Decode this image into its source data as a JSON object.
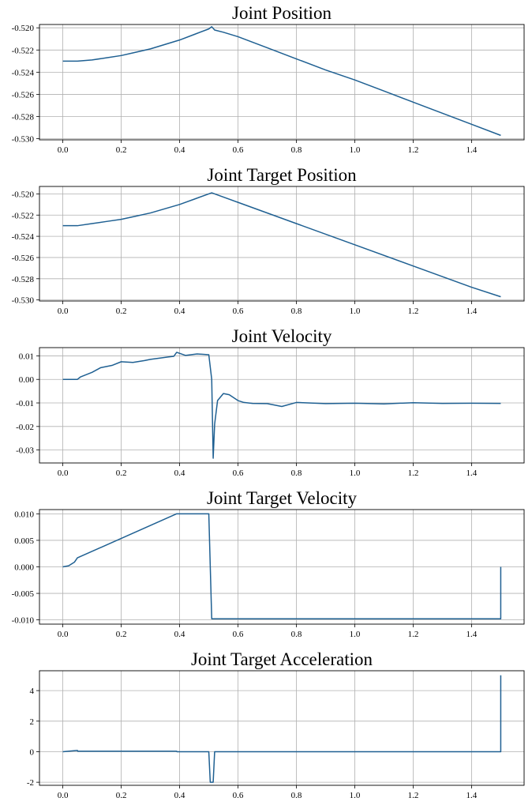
{
  "colors": {
    "line": "#1f6092",
    "grid": "#b0b0b0",
    "axes": "#000000"
  },
  "chart_data": [
    {
      "type": "line",
      "title": "Joint Position",
      "xlabel": "",
      "ylabel": "",
      "xlim": [
        -0.08,
        1.58
      ],
      "ylim": [
        -0.5301,
        -0.5197
      ],
      "xticks": [
        0.0,
        0.2,
        0.4,
        0.6,
        0.8,
        1.0,
        1.2,
        1.4
      ],
      "xtick_labels": [
        "0.0",
        "0.2",
        "0.4",
        "0.6",
        "0.8",
        "1.0",
        "1.2",
        "1.4"
      ],
      "yticks": [
        -0.52,
        -0.522,
        -0.524,
        -0.526,
        -0.528,
        -0.53
      ],
      "ytick_labels": [
        "-0.520",
        "-0.522",
        "-0.524",
        "-0.526",
        "-0.528",
        "-0.530"
      ],
      "grid": true,
      "series": [
        {
          "x": [
            0.0,
            0.05,
            0.1,
            0.15,
            0.2,
            0.25,
            0.3,
            0.35,
            0.4,
            0.45,
            0.5,
            0.51,
            0.52,
            0.55,
            0.6,
            0.7,
            0.8,
            0.9,
            1.0,
            1.1,
            1.2,
            1.3,
            1.4,
            1.5
          ],
          "y": [
            -0.523,
            -0.523,
            -0.5229,
            -0.5227,
            -0.5225,
            -0.5222,
            -0.5219,
            -0.5215,
            -0.5211,
            -0.5206,
            -0.5201,
            -0.5199,
            -0.5202,
            -0.5204,
            -0.5208,
            -0.5218,
            -0.5228,
            -0.5238,
            -0.5247,
            -0.5257,
            -0.5267,
            -0.5277,
            -0.5287,
            -0.5297
          ]
        }
      ]
    },
    {
      "type": "line",
      "title": "Joint Target Position",
      "xlabel": "",
      "ylabel": "",
      "xlim": [
        -0.08,
        1.58
      ],
      "ylim": [
        -0.5301,
        -0.5193
      ],
      "xticks": [
        0.0,
        0.2,
        0.4,
        0.6,
        0.8,
        1.0,
        1.2,
        1.4
      ],
      "xtick_labels": [
        "0.0",
        "0.2",
        "0.4",
        "0.6",
        "0.8",
        "1.0",
        "1.2",
        "1.4"
      ],
      "yticks": [
        -0.52,
        -0.522,
        -0.524,
        -0.526,
        -0.528,
        -0.53
      ],
      "ytick_labels": [
        "-0.520",
        "-0.522",
        "-0.524",
        "-0.526",
        "-0.528",
        "-0.530"
      ],
      "grid": true,
      "series": [
        {
          "x": [
            0.0,
            0.05,
            0.1,
            0.15,
            0.2,
            0.25,
            0.3,
            0.35,
            0.4,
            0.45,
            0.51,
            0.6,
            0.8,
            1.0,
            1.2,
            1.4,
            1.5
          ],
          "y": [
            -0.523,
            -0.523,
            -0.5228,
            -0.5226,
            -0.5224,
            -0.5221,
            -0.5218,
            -0.5214,
            -0.521,
            -0.5205,
            -0.5199,
            -0.5208,
            -0.5228,
            -0.5248,
            -0.5268,
            -0.5288,
            -0.5297
          ]
        }
      ]
    },
    {
      "type": "line",
      "title": "Joint Velocity",
      "xlabel": "",
      "ylabel": "",
      "xlim": [
        -0.08,
        1.58
      ],
      "ylim": [
        -0.0355,
        0.0135
      ],
      "xticks": [
        0.0,
        0.2,
        0.4,
        0.6,
        0.8,
        1.0,
        1.2,
        1.4
      ],
      "xtick_labels": [
        "0.0",
        "0.2",
        "0.4",
        "0.6",
        "0.8",
        "1.0",
        "1.2",
        "1.4"
      ],
      "yticks": [
        0.01,
        0.0,
        -0.01,
        -0.02,
        -0.03
      ],
      "ytick_labels": [
        "0.01",
        "0.00",
        "-0.01",
        "-0.02",
        "-0.03"
      ],
      "grid": true,
      "series": [
        {
          "x": [
            0.0,
            0.05,
            0.06,
            0.1,
            0.13,
            0.17,
            0.2,
            0.24,
            0.28,
            0.3,
            0.33,
            0.36,
            0.38,
            0.39,
            0.42,
            0.46,
            0.5,
            0.51,
            0.515,
            0.52,
            0.53,
            0.55,
            0.57,
            0.6,
            0.62,
            0.65,
            0.7,
            0.75,
            0.8,
            0.9,
            1.0,
            1.1,
            1.2,
            1.3,
            1.4,
            1.5
          ],
          "y": [
            0.0,
            0.0,
            0.001,
            0.003,
            0.005,
            0.006,
            0.0075,
            0.0072,
            0.008,
            0.0085,
            0.009,
            0.0095,
            0.0098,
            0.0115,
            0.0102,
            0.0108,
            0.0105,
            0.0,
            -0.0335,
            -0.019,
            -0.009,
            -0.006,
            -0.0065,
            -0.009,
            -0.0098,
            -0.0102,
            -0.0103,
            -0.0115,
            -0.0098,
            -0.0103,
            -0.0101,
            -0.0104,
            -0.0099,
            -0.0102,
            -0.0101,
            -0.0102
          ]
        }
      ]
    },
    {
      "type": "line",
      "title": "Joint Target Velocity",
      "xlabel": "",
      "ylabel": "",
      "xlim": [
        -0.08,
        1.58
      ],
      "ylim": [
        -0.0108,
        0.0108
      ],
      "xticks": [
        0.0,
        0.2,
        0.4,
        0.6,
        0.8,
        1.0,
        1.2,
        1.4
      ],
      "xtick_labels": [
        "0.0",
        "0.2",
        "0.4",
        "0.6",
        "0.8",
        "1.0",
        "1.2",
        "1.4"
      ],
      "yticks": [
        0.01,
        0.005,
        0.0,
        -0.005,
        -0.01
      ],
      "ytick_labels": [
        "0.010",
        "0.005",
        "0.000",
        "-0.005",
        "-0.010"
      ],
      "grid": true,
      "series": [
        {
          "x": [
            0.0,
            0.02,
            0.04,
            0.05,
            0.39,
            0.5,
            0.51,
            1.5,
            1.5
          ],
          "y": [
            0.0,
            0.0002,
            0.0009,
            0.0017,
            0.01,
            0.01,
            -0.0098,
            -0.0098,
            0.0
          ]
        }
      ]
    },
    {
      "type": "line",
      "title": "Joint Target Acceleration",
      "xlabel": "",
      "ylabel": "",
      "xlim": [
        -0.08,
        1.58
      ],
      "ylim": [
        -2.2,
        5.3
      ],
      "xticks": [
        0.0,
        0.2,
        0.4,
        0.6,
        0.8,
        1.0,
        1.2,
        1.4
      ],
      "xtick_labels": [
        "0.0",
        "0.2",
        "0.4",
        "0.6",
        "0.8",
        "1.0",
        "1.2",
        "1.4"
      ],
      "yticks": [
        4,
        2,
        0,
        -2
      ],
      "ytick_labels": [
        "4",
        "2",
        "0",
        "-2"
      ],
      "grid": true,
      "series": [
        {
          "x": [
            0.0,
            0.05,
            0.051,
            0.39,
            0.391,
            0.5,
            0.505,
            0.515,
            0.52,
            1.5,
            1.5
          ],
          "y": [
            0.0,
            0.08,
            0.03,
            0.03,
            0.0,
            0.0,
            -2.0,
            -2.0,
            0.0,
            0.0,
            5.0
          ]
        }
      ]
    }
  ]
}
